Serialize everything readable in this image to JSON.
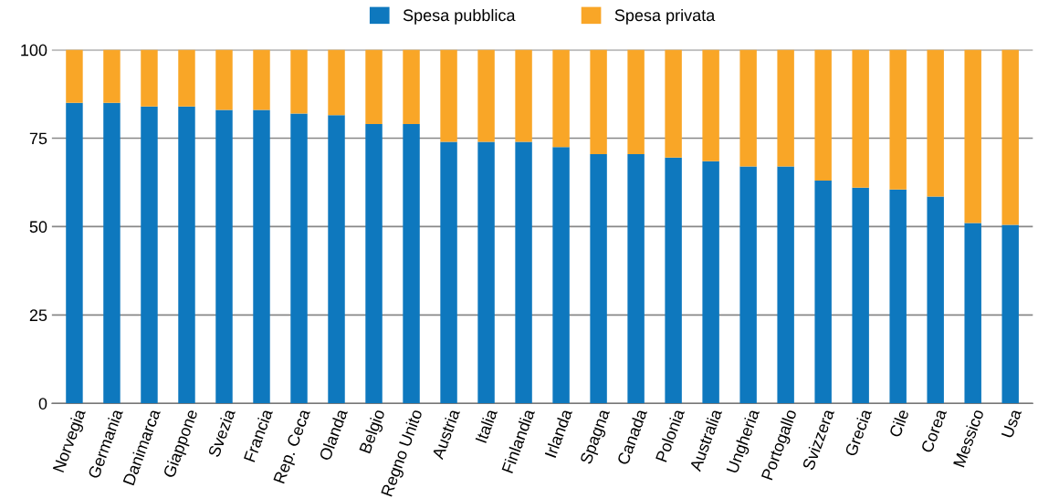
{
  "chart_data": {
    "type": "bar",
    "stacked": true,
    "categories": [
      "Norvegia",
      "Germania",
      "Danimarca",
      "Giappone",
      "Svezia",
      "Francia",
      "Rep. Ceca",
      "Olanda",
      "Belgio",
      "Regno Unito",
      "Austria",
      "Italia",
      "Finlandia",
      "Irlanda",
      "Spagna",
      "Canada",
      "Polonia",
      "Australia",
      "Ungheria",
      "Portogallo",
      "Svizzera",
      "Grecia",
      "Cile",
      "Corea",
      "Messico",
      "Usa"
    ],
    "series": [
      {
        "name": "Spesa pubblica",
        "color": "#0e78be",
        "values": [
          85,
          85,
          84,
          84,
          83,
          83,
          82,
          81.5,
          79,
          79,
          74,
          74,
          74,
          72.5,
          70.5,
          70.5,
          69.5,
          68.5,
          67,
          67,
          63,
          61,
          60.5,
          58.5,
          51,
          50.5
        ]
      },
      {
        "name": "Spesa privata",
        "color": "#f9a627",
        "values": [
          15,
          15,
          16,
          16,
          17,
          17,
          18,
          18.5,
          21,
          21,
          26,
          26,
          26,
          27.5,
          29.5,
          29.5,
          30.5,
          31.5,
          33,
          33,
          37,
          39,
          39.5,
          41.5,
          49,
          49.5
        ]
      }
    ],
    "ylim": [
      0,
      100
    ],
    "yticks": [
      0,
      25,
      50,
      75,
      100
    ],
    "grid": "y",
    "legend": "top"
  }
}
